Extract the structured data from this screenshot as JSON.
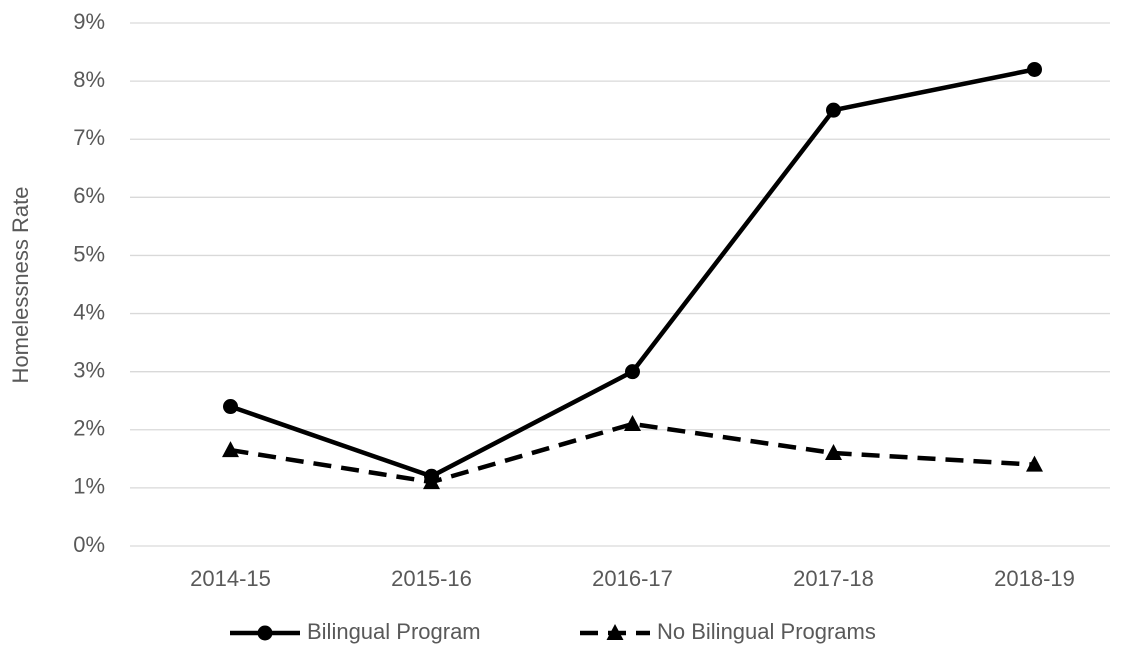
{
  "chart_data": {
    "type": "line",
    "y_axis_label": "Homelessness Rate",
    "categories": [
      "2014-15",
      "2015-16",
      "2016-17",
      "2017-18",
      "2018-19"
    ],
    "series": [
      {
        "name": "Bilingual Program",
        "color": "#000000",
        "marker": "circle",
        "dash": false,
        "values": [
          2.4,
          1.2,
          3.0,
          7.5,
          8.2
        ]
      },
      {
        "name": "No Bilingual Programs",
        "color": "#000000",
        "marker": "triangle",
        "dash": true,
        "values": [
          1.65,
          1.1,
          2.1,
          1.6,
          1.4
        ]
      }
    ],
    "ylim": [
      0,
      9
    ],
    "yticks": [
      {
        "value": 0,
        "label": "0%"
      },
      {
        "value": 1,
        "label": "1%"
      },
      {
        "value": 2,
        "label": "2%"
      },
      {
        "value": 3,
        "label": "3%"
      },
      {
        "value": 4,
        "label": "4%"
      },
      {
        "value": 5,
        "label": "5%"
      },
      {
        "value": 6,
        "label": "6%"
      },
      {
        "value": 7,
        "label": "7%"
      },
      {
        "value": 8,
        "label": "8%"
      },
      {
        "value": 9,
        "label": "9%"
      }
    ],
    "grid": true,
    "legend": "bottom"
  }
}
